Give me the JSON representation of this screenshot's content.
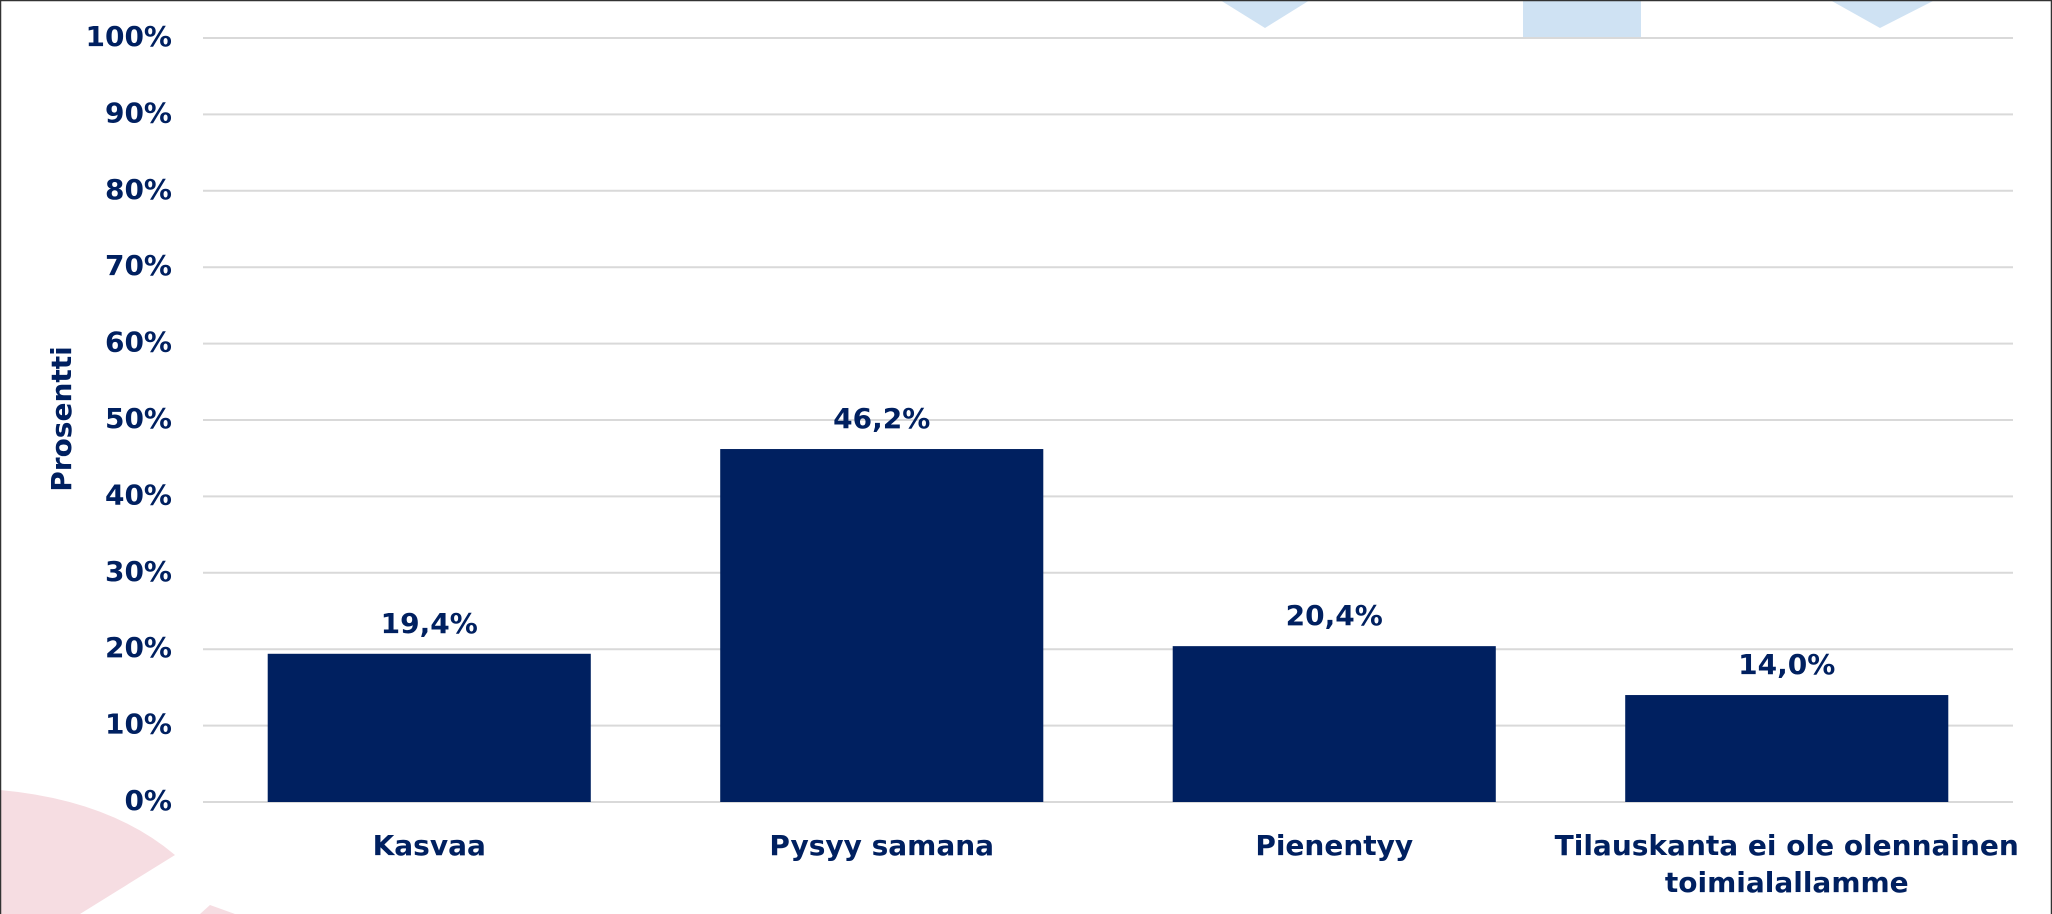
{
  "chart_data": {
    "type": "bar",
    "ylabel": "Prosentti",
    "categories": [
      "Kasvaa",
      "Pysyy samana",
      "Pienentyy",
      "Tilauskanta ei ole olennainen toimialallamme"
    ],
    "values": [
      19.4,
      46.2,
      20.4,
      14.0
    ],
    "value_labels": [
      "19,4%",
      "46,2%",
      "20,4%",
      "14,0%"
    ],
    "color": "#002060",
    "ylim": [
      0,
      100
    ],
    "yticks": [
      {
        "value": 0,
        "label": "0%"
      },
      {
        "value": 10,
        "label": "10%"
      },
      {
        "value": 20,
        "label": "20%"
      },
      {
        "value": 30,
        "label": "30%"
      },
      {
        "value": 40,
        "label": "40%"
      },
      {
        "value": 50,
        "label": "50%"
      },
      {
        "value": 60,
        "label": "60%"
      },
      {
        "value": 70,
        "label": "70%"
      },
      {
        "value": 80,
        "label": "80%"
      },
      {
        "value": 90,
        "label": "90%"
      },
      {
        "value": 100,
        "label": "100%"
      }
    ],
    "grid": true
  }
}
